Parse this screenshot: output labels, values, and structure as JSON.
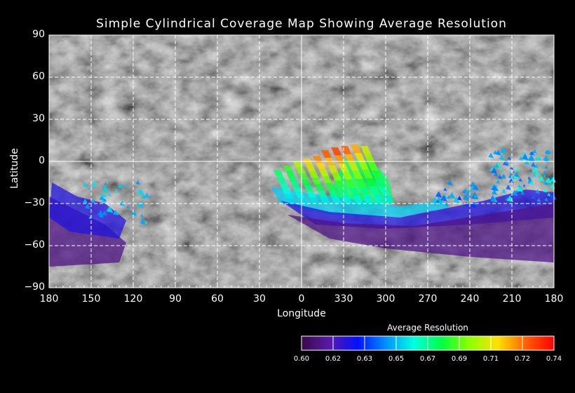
{
  "chart_data": {
    "type": "heatmap",
    "title": "Simple Cylindrical Coverage Map Showing Average Resolution",
    "xlabel": "Longitude",
    "ylabel": "Latitude",
    "x_ticks": [
      "180",
      "150",
      "120",
      "90",
      "60",
      "30",
      "0",
      "330",
      "300",
      "270",
      "240",
      "210",
      "180"
    ],
    "y_ticks": [
      "90",
      "60",
      "30",
      "0",
      "−30",
      "−60",
      "−90"
    ],
    "ylim": [
      -90,
      90
    ],
    "grid": true,
    "colorbar": {
      "title": "Average Resolution",
      "ticks": [
        "0.60",
        "0.62",
        "0.63",
        "0.65",
        "0.67",
        "0.69",
        "0.71",
        "0.72",
        "0.74"
      ],
      "range": [
        0.6,
        0.74
      ],
      "placement": "bottom-right"
    },
    "colormap": [
      "#3a0848",
      "#5a1aa8",
      "#0010ff",
      "#0090ff",
      "#00ffe0",
      "#00ff40",
      "#90ff00",
      "#ffe000",
      "#ff6000",
      "#ff0000"
    ],
    "streaks": [
      {
        "lon": 20,
        "lat_top": -6,
        "value": 0.675
      },
      {
        "lon": 13,
        "lat_top": -3,
        "value": 0.685
      },
      {
        "lon": 6,
        "lat_top": 0,
        "value": 0.7
      },
      {
        "lon": -1,
        "lat_top": 2,
        "value": 0.715
      },
      {
        "lon": -8,
        "lat_top": 4,
        "value": 0.725
      },
      {
        "lon": -14,
        "lat_top": 8,
        "value": 0.73
      },
      {
        "lon": -21,
        "lat_top": 10,
        "value": 0.735
      },
      {
        "lon": -28,
        "lat_top": 11,
        "value": 0.73
      },
      {
        "lon": -35,
        "lat_top": 12,
        "value": 0.72
      },
      {
        "lon": -42,
        "lat_top": 11,
        "value": 0.705
      }
    ],
    "regions": [
      {
        "name": "fan-green-body",
        "value": 0.675,
        "points": [
          [
            -30,
            2
          ],
          [
            -50,
            0
          ],
          [
            -62,
            -12
          ],
          [
            -66,
            -30
          ],
          [
            -45,
            -33
          ],
          [
            -20,
            -25
          ]
        ]
      },
      {
        "name": "fan-cyan-base",
        "value": 0.655,
        "points": [
          [
            22,
            -18
          ],
          [
            0,
            -22
          ],
          [
            -30,
            -26
          ],
          [
            -70,
            -32
          ],
          [
            -100,
            -28
          ],
          [
            -105,
            -33
          ],
          [
            -70,
            -40
          ],
          [
            -20,
            -38
          ],
          [
            15,
            -30
          ]
        ]
      },
      {
        "name": "blue-band",
        "value": 0.625,
        "points": [
          [
            15,
            -28
          ],
          [
            -20,
            -36
          ],
          [
            -70,
            -40
          ],
          [
            -100,
            -34
          ],
          [
            -130,
            -28
          ],
          [
            -160,
            -20
          ],
          [
            -180,
            -22
          ],
          [
            -180,
            -40
          ],
          [
            -120,
            -45
          ],
          [
            -60,
            -48
          ],
          [
            -10,
            -45
          ]
        ]
      },
      {
        "name": "purple-band",
        "value": 0.61,
        "points": [
          [
            10,
            -38
          ],
          [
            -30,
            -44
          ],
          [
            -80,
            -46
          ],
          [
            -130,
            -38
          ],
          [
            -180,
            -30
          ],
          [
            -180,
            -72
          ],
          [
            -120,
            -68
          ],
          [
            -60,
            -62
          ],
          [
            -20,
            -55
          ]
        ]
      },
      {
        "name": "left-purple",
        "value": 0.61,
        "points": [
          [
            180,
            -25
          ],
          [
            160,
            -35
          ],
          [
            140,
            -45
          ],
          [
            125,
            -58
          ],
          [
            130,
            -72
          ],
          [
            180,
            -75
          ]
        ]
      },
      {
        "name": "left-blue",
        "value": 0.625,
        "points": [
          [
            178,
            -15
          ],
          [
            160,
            -25
          ],
          [
            140,
            -30
          ],
          [
            125,
            -42
          ],
          [
            130,
            -55
          ],
          [
            165,
            -50
          ],
          [
            180,
            -40
          ]
        ]
      }
    ],
    "scatter": [
      {
        "lon": [
          155,
          110
        ],
        "lat": [
          -15,
          -45
        ],
        "value": [
          0.645,
          0.66
        ],
        "count": 40
      },
      {
        "lon": [
          -135,
          -180
        ],
        "lat": [
          8,
          -28
        ],
        "value": [
          0.64,
          0.665
        ],
        "count": 90
      },
      {
        "lon": [
          -95,
          -125
        ],
        "lat": [
          -15,
          -32
        ],
        "value": [
          0.635,
          0.655
        ],
        "count": 30
      }
    ]
  }
}
